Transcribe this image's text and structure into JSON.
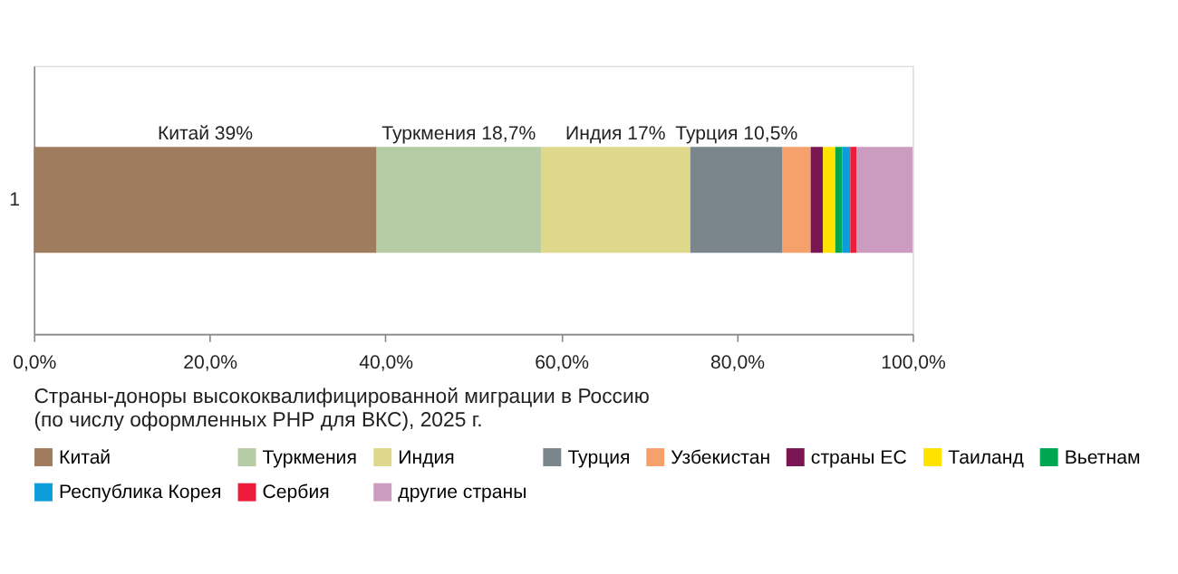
{
  "chart_data": {
    "type": "bar",
    "orientation": "horizontal",
    "stacked": true,
    "title": "Страны-доноры высококвалифицированной миграции в Россию\n(по числу оформленных РНР для ВКС), 2025 г.",
    "categories": [
      "1"
    ],
    "series": [
      {
        "name": "Китай",
        "color": "#a07c5e",
        "values": [
          39
        ],
        "value_labels": [
          "Китай 39%"
        ]
      },
      {
        "name": "Туркмения",
        "color": "#b5cba4",
        "values": [
          18.7
        ],
        "value_labels": [
          "Туркмения 18,7%"
        ]
      },
      {
        "name": "Индия",
        "color": "#ded88c",
        "values": [
          17
        ],
        "value_labels": [
          "Индия 17%"
        ]
      },
      {
        "name": "Турция",
        "color": "#7a858c",
        "values": [
          10.5
        ],
        "value_labels": [
          "Турция 10,5%"
        ]
      },
      {
        "name": "Узбекистан",
        "color": "#f6a06c",
        "values": [
          3.2
        ]
      },
      {
        "name": "страны ЕС",
        "color": "#7a1654",
        "values": [
          1.4
        ]
      },
      {
        "name": "Таиланд",
        "color": "#ffe200",
        "values": [
          1.4
        ]
      },
      {
        "name": "Вьетнам",
        "color": "#00a651",
        "values": [
          0.8
        ]
      },
      {
        "name": "Республика Корея",
        "color": "#0d9ddb",
        "values": [
          0.9
        ]
      },
      {
        "name": "Сербия",
        "color": "#ed1c3a",
        "values": [
          0.7
        ]
      },
      {
        "name": "другие страны",
        "color": "#cc9cc0",
        "values": [
          6.4
        ]
      }
    ],
    "xlim": [
      0,
      100
    ],
    "xticks": [
      {
        "value": 0,
        "label": "0,0%"
      },
      {
        "value": 20,
        "label": "20,0%"
      },
      {
        "value": 40,
        "label": "40,0%"
      },
      {
        "value": 60,
        "label": "60,0%"
      },
      {
        "value": 80,
        "label": "80,0%"
      },
      {
        "value": 100,
        "label": "100,0%"
      }
    ],
    "grid": false,
    "legend": "bottom"
  }
}
